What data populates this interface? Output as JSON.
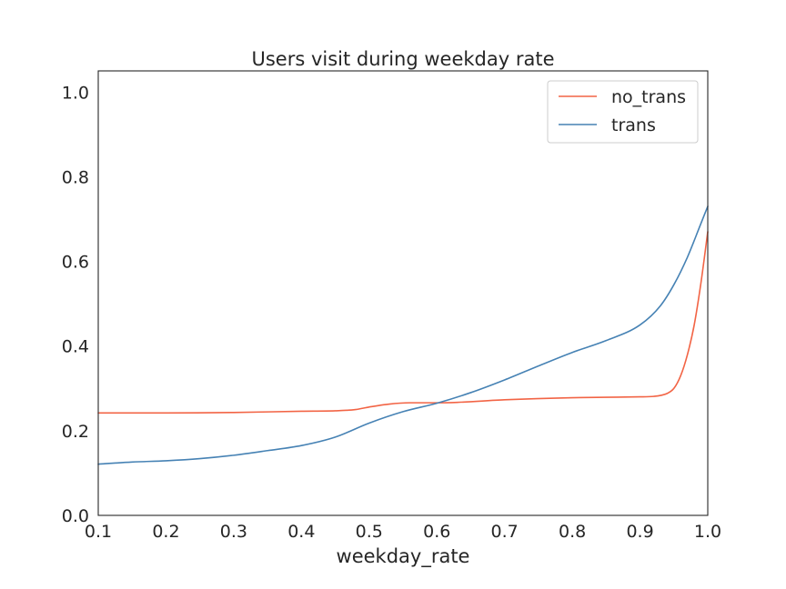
{
  "chart_data": {
    "type": "line",
    "title": "Users visit during weekday rate",
    "xlabel": "weekday_rate",
    "ylabel": "",
    "xlim": [
      0.1,
      1.0
    ],
    "ylim": [
      0.0,
      1.05
    ],
    "xticks": [
      "0.1",
      "0.2",
      "0.3",
      "0.4",
      "0.5",
      "0.6",
      "0.7",
      "0.8",
      "0.9",
      "1.0"
    ],
    "yticks": [
      "0.0",
      "0.2",
      "0.4",
      "0.6",
      "0.8",
      "1.0"
    ],
    "grid": false,
    "legend_position": "top-right",
    "series": [
      {
        "name": "no_trans",
        "color": "#f26445",
        "x": [
          0.1,
          0.2,
          0.3,
          0.4,
          0.45,
          0.48,
          0.5,
          0.53,
          0.56,
          0.6,
          0.63,
          0.7,
          0.8,
          0.85,
          0.9,
          0.92,
          0.94,
          0.95,
          0.96,
          0.97,
          0.98,
          0.99,
          1.0
        ],
        "y": [
          0.242,
          0.242,
          0.243,
          0.246,
          0.247,
          0.25,
          0.256,
          0.263,
          0.266,
          0.266,
          0.267,
          0.273,
          0.278,
          0.279,
          0.28,
          0.281,
          0.288,
          0.3,
          0.33,
          0.38,
          0.45,
          0.55,
          0.67
        ]
      },
      {
        "name": "trans",
        "color": "#4682b4",
        "x": [
          0.1,
          0.15,
          0.2,
          0.25,
          0.3,
          0.35,
          0.4,
          0.45,
          0.5,
          0.55,
          0.6,
          0.65,
          0.7,
          0.75,
          0.8,
          0.85,
          0.9,
          0.93,
          0.95,
          0.97,
          0.99,
          1.0
        ],
        "y": [
          0.121,
          0.126,
          0.129,
          0.134,
          0.142,
          0.153,
          0.165,
          0.185,
          0.218,
          0.245,
          0.265,
          0.29,
          0.32,
          0.353,
          0.385,
          0.413,
          0.45,
          0.495,
          0.545,
          0.61,
          0.69,
          0.73
        ]
      }
    ]
  }
}
